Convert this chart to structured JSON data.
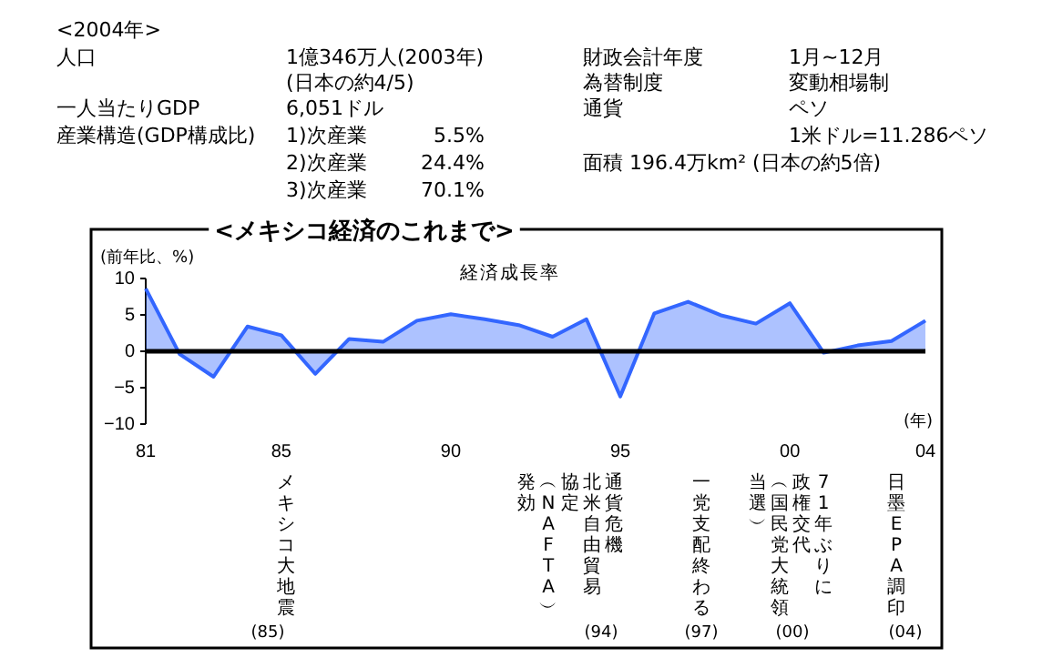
{
  "chart_data": [
    {
      "type": "other",
      "annotations": [
        "<2004年>",
        "人口",
        "1億346万人(2003年)",
        "(日本の約4/5)",
        "一人当たりGDP",
        "6,051ドル",
        "産業構造(GDP構成比)",
        "1)次産業",
        "5.5%",
        "2)次産業",
        "24.4%",
        "3)次産業",
        "70.1%",
        "財政会計年度",
        "1月~12月",
        "為替制度",
        "変動相場制",
        "通貨",
        "ペソ",
        "1米ドル=11.286ペソ",
        "面積 196.4万km² (日本の約5倍)"
      ]
    },
    {
      "type": "area",
      "title": "<メキシコ経済のこれまで>",
      "ylabel": "(前年比、%)",
      "x": [
        1981,
        1982,
        1983,
        1984,
        1985,
        1986,
        1987,
        1988,
        1989,
        1990,
        1991,
        1992,
        1993,
        1994,
        1995,
        1996,
        1997,
        1998,
        1999,
        2000,
        2001,
        2002,
        2003,
        2004
      ],
      "series": [
        {
          "name": "経済成長率",
          "color": "#3366ff",
          "values": [
            8.6,
            -0.4,
            -3.5,
            3.4,
            2.2,
            -3.1,
            1.7,
            1.3,
            4.2,
            5.1,
            4.4,
            3.6,
            2.0,
            4.4,
            -6.2,
            5.2,
            6.8,
            4.9,
            3.8,
            6.6,
            -0.2,
            0.8,
            1.4,
            4.2
          ]
        }
      ],
      "xlim": [
        1981,
        2004
      ],
      "xticks": [
        {
          "value": 1981,
          "label": "81"
        },
        {
          "value": 1985,
          "label": "85"
        },
        {
          "value": 1990,
          "label": "90"
        },
        {
          "value": 1995,
          "label": "95"
        },
        {
          "value": 2000,
          "label": "00"
        },
        {
          "value": 2004,
          "label": "04"
        }
      ],
      "ylim": [
        -10,
        10
      ],
      "yticks": [
        -10,
        -5,
        0,
        5,
        10
      ],
      "annotations": [
        "(年)",
        "メキシコ大地震",
        "通貨危機",
        "北米自由貿易",
        "協定",
        "︵NAFTA︶",
        "発効",
        "一党支配終わる",
        "71年ぶりに",
        "政権交代",
        "︵国民党大統領",
        "当選︶",
        "日墨EPA調印",
        "(85)",
        "(94)",
        "(97)",
        "(00)",
        "(04)"
      ]
    }
  ]
}
